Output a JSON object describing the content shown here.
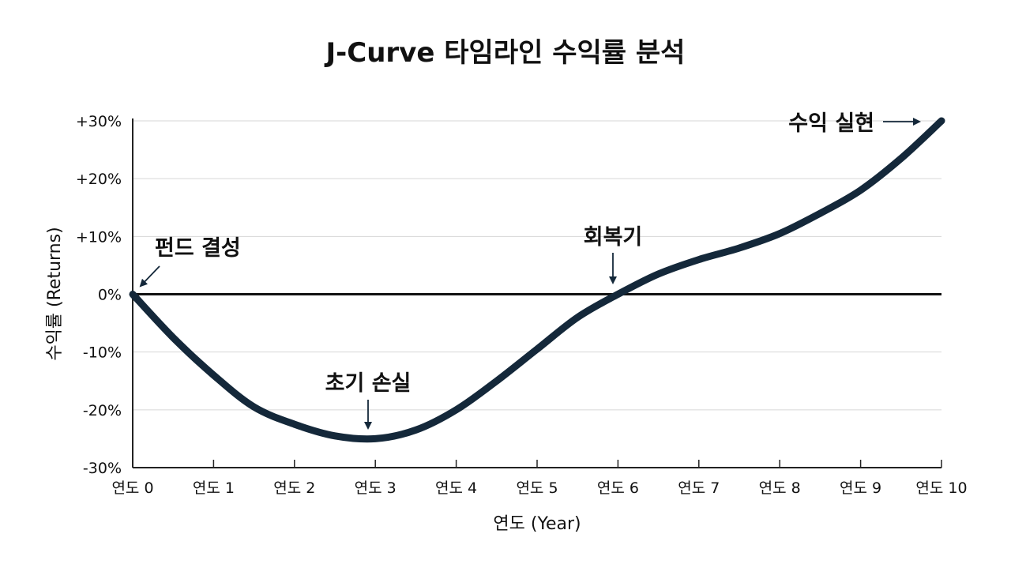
{
  "chart_data": {
    "type": "line",
    "title": "J-Curve 타임라인 수익률 분석",
    "xlabel": "연도 (Year)",
    "ylabel": "수익률 (Returns)",
    "categories": [
      "연도 0",
      "연도 1",
      "연도 2",
      "연도 3",
      "연도 4",
      "연도 5",
      "연도 6",
      "연도 7",
      "연도 8",
      "연도 9",
      "연도 10"
    ],
    "y_ticks": [
      "+30%",
      "+20%",
      "+10%",
      "0%",
      "-10%",
      "-20%",
      "-30%"
    ],
    "ylim": [
      -30,
      30
    ],
    "xlim": [
      0,
      10
    ],
    "grid": true,
    "series": [
      {
        "name": "J-Curve",
        "color": "#14283a",
        "x": [
          0,
          0.5,
          1,
          1.5,
          2,
          2.5,
          3,
          3.5,
          4,
          4.5,
          5,
          5.5,
          6,
          6.5,
          7,
          7.5,
          8,
          8.5,
          9,
          9.5,
          10
        ],
        "values": [
          0,
          -7.5,
          -14,
          -19.5,
          -22.5,
          -24.5,
          -25,
          -23.5,
          -20,
          -15,
          -9.5,
          -4,
          0,
          3.5,
          6,
          8,
          10.5,
          14,
          18,
          23.5,
          30
        ]
      }
    ],
    "annotations": [
      {
        "text": "펀드 결성",
        "x": 0,
        "y": 0
      },
      {
        "text": "초기 손실",
        "x": 3,
        "y": -25
      },
      {
        "text": "회복기",
        "x": 6,
        "y": 0
      },
      {
        "text": "수익 실현",
        "x": 10,
        "y": 30
      }
    ]
  }
}
